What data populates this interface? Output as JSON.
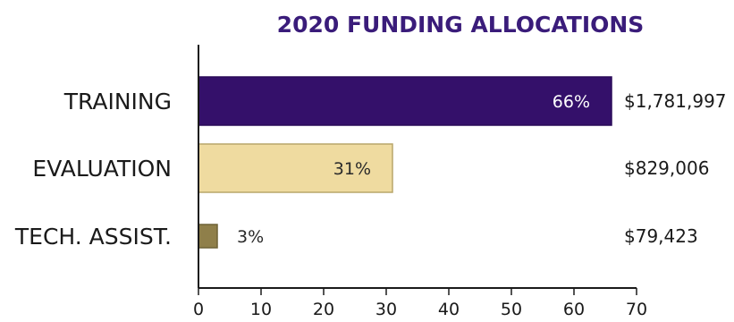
{
  "chart_data": {
    "type": "bar",
    "orientation": "horizontal",
    "title": "2020 FUNDING ALLOCATIONS",
    "xlabel": "",
    "ylabel": "",
    "categories": [
      "TRAINING",
      "EVALUATION",
      "TECH. ASSIST."
    ],
    "values": [
      66,
      31,
      3
    ],
    "value_labels": [
      "66%",
      "31%",
      "3%"
    ],
    "amounts": [
      "$1,781,997",
      "$829,006",
      "$79,423"
    ],
    "xlim": [
      0,
      70
    ],
    "xticks": [
      0,
      10,
      20,
      30,
      40,
      50,
      60,
      70
    ],
    "grid": false,
    "legend": "none",
    "colors": {
      "title": "#3a1c7a",
      "bars": [
        "#34106a",
        "#efdba0",
        "#8f7f4a"
      ],
      "bar_borders": [
        "#2a0b58",
        "#b9a66a",
        "#6e6236"
      ],
      "value_label_colors": [
        "#ffffff",
        "#2a2a2a",
        "#2a2a2a"
      ],
      "axis": "#1a1a1a"
    }
  }
}
